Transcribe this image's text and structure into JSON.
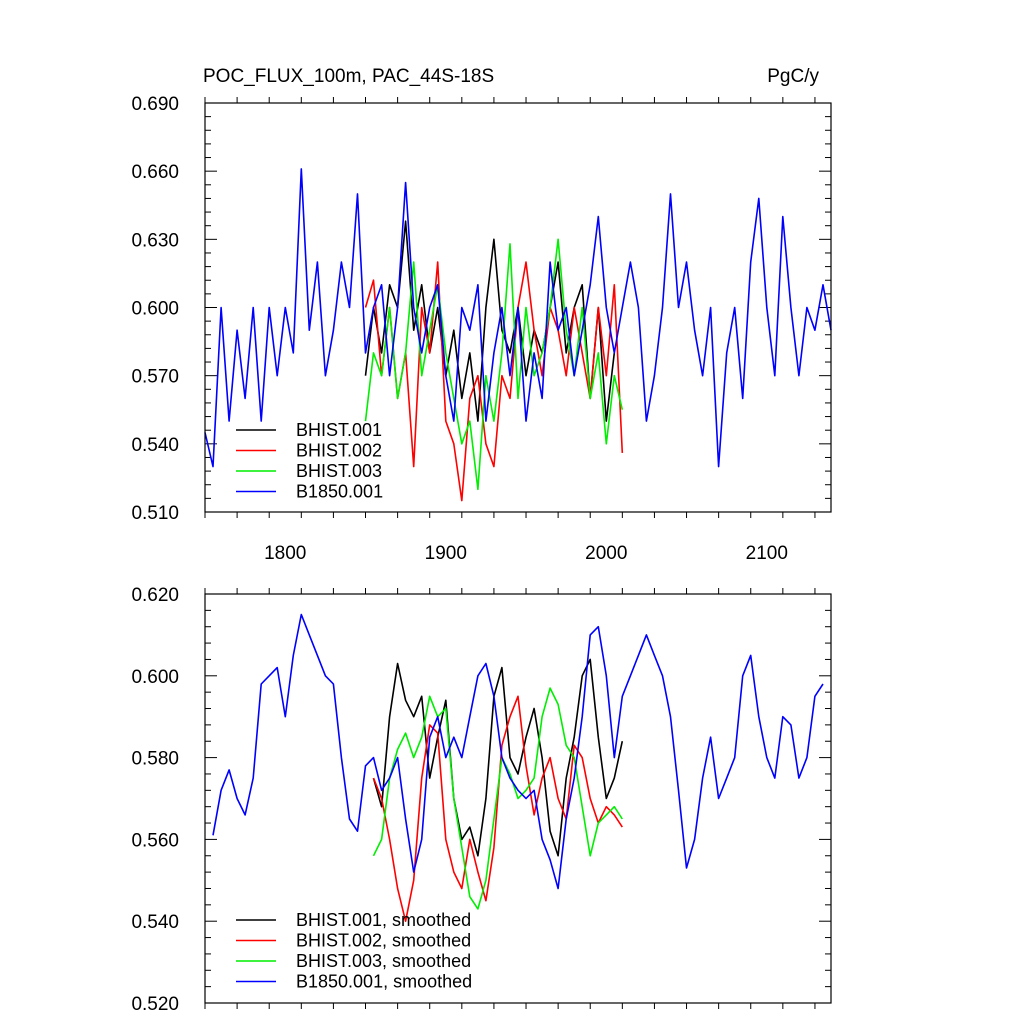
{
  "chart_data": [
    {
      "type": "line",
      "title": "POC_FLUX_100m, PAC_44S-18S",
      "units": "PgC/y",
      "xlim": [
        1750,
        2140
      ],
      "ylim": [
        0.51,
        0.69
      ],
      "xticks": [
        1800,
        1900,
        2000,
        2100
      ],
      "xtick_labels": [
        "1800",
        "1900",
        "2000",
        "2100"
      ],
      "yticks": [
        0.51,
        0.54,
        0.57,
        0.6,
        0.63,
        0.66,
        0.69
      ],
      "ytick_labels": [
        "0.510",
        "0.540",
        "0.570",
        "0.600",
        "0.630",
        "0.660",
        "0.690"
      ],
      "legend_position": "bottom-left",
      "series": [
        {
          "name": "BHIST.001",
          "color": "#000000",
          "x": [
            1850,
            1855,
            1860,
            1865,
            1870,
            1875,
            1880,
            1885,
            1890,
            1895,
            1900,
            1905,
            1910,
            1915,
            1920,
            1925,
            1930,
            1935,
            1940,
            1945,
            1950,
            1955,
            1960,
            1965,
            1970,
            1975,
            1980,
            1985,
            1990,
            1995,
            2000,
            2005
          ],
          "y": [
            0.57,
            0.6,
            0.58,
            0.61,
            0.6,
            0.638,
            0.59,
            0.61,
            0.58,
            0.6,
            0.57,
            0.59,
            0.56,
            0.58,
            0.55,
            0.6,
            0.63,
            0.59,
            0.58,
            0.6,
            0.57,
            0.59,
            0.58,
            0.6,
            0.62,
            0.58,
            0.6,
            0.61,
            0.56,
            0.6,
            0.55,
            0.58
          ]
        },
        {
          "name": "BHIST.002",
          "color": "#ff0000",
          "x": [
            1850,
            1855,
            1860,
            1865,
            1870,
            1875,
            1880,
            1885,
            1890,
            1895,
            1900,
            1905,
            1910,
            1915,
            1920,
            1925,
            1930,
            1935,
            1940,
            1945,
            1950,
            1955,
            1960,
            1965,
            1970,
            1975,
            1980,
            1985,
            1990,
            1995,
            2000,
            2005,
            2010
          ],
          "y": [
            0.6,
            0.612,
            0.57,
            0.6,
            0.56,
            0.58,
            0.53,
            0.6,
            0.58,
            0.62,
            0.55,
            0.54,
            0.515,
            0.56,
            0.57,
            0.54,
            0.53,
            0.57,
            0.56,
            0.6,
            0.62,
            0.59,
            0.57,
            0.6,
            0.59,
            0.57,
            0.6,
            0.58,
            0.56,
            0.6,
            0.57,
            0.61,
            0.536
          ]
        },
        {
          "name": "BHIST.003",
          "color": "#00ee00",
          "x": [
            1850,
            1855,
            1860,
            1865,
            1870,
            1875,
            1880,
            1885,
            1890,
            1895,
            1900,
            1905,
            1910,
            1915,
            1920,
            1925,
            1930,
            1935,
            1940,
            1945,
            1950,
            1955,
            1960,
            1965,
            1970,
            1975,
            1980,
            1985,
            1990,
            1995,
            2000,
            2005,
            2010
          ],
          "y": [
            0.55,
            0.58,
            0.57,
            0.6,
            0.56,
            0.58,
            0.62,
            0.57,
            0.59,
            0.61,
            0.58,
            0.56,
            0.54,
            0.55,
            0.52,
            0.57,
            0.55,
            0.58,
            0.628,
            0.56,
            0.6,
            0.57,
            0.58,
            0.6,
            0.63,
            0.59,
            0.57,
            0.6,
            0.56,
            0.58,
            0.54,
            0.57,
            0.555
          ]
        },
        {
          "name": "B1850.001",
          "color": "#0000ff",
          "x": [
            1750,
            1755,
            1760,
            1765,
            1770,
            1775,
            1780,
            1785,
            1790,
            1795,
            1800,
            1805,
            1810,
            1815,
            1820,
            1825,
            1830,
            1835,
            1840,
            1845,
            1850,
            1855,
            1860,
            1865,
            1870,
            1875,
            1880,
            1885,
            1890,
            1895,
            1900,
            1905,
            1910,
            1915,
            1920,
            1925,
            1930,
            1935,
            1940,
            1945,
            1950,
            1955,
            1960,
            1965,
            1970,
            1975,
            1980,
            1985,
            1990,
            1995,
            2000,
            2005,
            2010,
            2015,
            2020,
            2025,
            2030,
            2035,
            2040,
            2045,
            2050,
            2055,
            2060,
            2065,
            2070,
            2075,
            2080,
            2085,
            2090,
            2095,
            2100,
            2105,
            2110,
            2115,
            2120,
            2125,
            2130,
            2135,
            2140
          ],
          "y": [
            0.545,
            0.53,
            0.6,
            0.55,
            0.59,
            0.56,
            0.6,
            0.55,
            0.6,
            0.57,
            0.6,
            0.58,
            0.661,
            0.59,
            0.62,
            0.57,
            0.59,
            0.62,
            0.6,
            0.65,
            0.58,
            0.6,
            0.61,
            0.57,
            0.6,
            0.655,
            0.6,
            0.58,
            0.6,
            0.61,
            0.57,
            0.55,
            0.6,
            0.59,
            0.61,
            0.55,
            0.58,
            0.6,
            0.57,
            0.6,
            0.55,
            0.58,
            0.56,
            0.62,
            0.59,
            0.6,
            0.57,
            0.59,
            0.61,
            0.64,
            0.6,
            0.58,
            0.6,
            0.62,
            0.6,
            0.55,
            0.57,
            0.6,
            0.65,
            0.6,
            0.62,
            0.59,
            0.57,
            0.6,
            0.53,
            0.58,
            0.6,
            0.56,
            0.62,
            0.648,
            0.6,
            0.57,
            0.64,
            0.6,
            0.57,
            0.6,
            0.59,
            0.61,
            0.59
          ]
        }
      ]
    },
    {
      "type": "line",
      "xlim": [
        1750,
        2140
      ],
      "ylim": [
        0.52,
        0.62
      ],
      "xticks": [
        1800,
        1900,
        2000,
        2100
      ],
      "yticks": [
        0.52,
        0.54,
        0.56,
        0.58,
        0.6,
        0.62
      ],
      "ytick_labels": [
        "0.520",
        "0.540",
        "0.560",
        "0.580",
        "0.600",
        "0.620"
      ],
      "legend_position": "bottom-left",
      "series": [
        {
          "name": "BHIST.001, smoothed",
          "color": "#000000",
          "x": [
            1855,
            1860,
            1865,
            1870,
            1875,
            1880,
            1885,
            1890,
            1895,
            1900,
            1905,
            1910,
            1915,
            1920,
            1925,
            1930,
            1935,
            1940,
            1945,
            1950,
            1955,
            1960,
            1965,
            1970,
            1975,
            1980,
            1985,
            1990,
            1995,
            2000,
            2005,
            2010
          ],
          "y": [
            0.575,
            0.568,
            0.59,
            0.603,
            0.594,
            0.59,
            0.595,
            0.575,
            0.585,
            0.594,
            0.57,
            0.56,
            0.563,
            0.556,
            0.57,
            0.595,
            0.602,
            0.58,
            0.576,
            0.585,
            0.592,
            0.58,
            0.562,
            0.556,
            0.575,
            0.585,
            0.6,
            0.604,
            0.585,
            0.57,
            0.575,
            0.584
          ]
        },
        {
          "name": "BHIST.002, smoothed",
          "color": "#ff0000",
          "x": [
            1855,
            1860,
            1865,
            1870,
            1875,
            1880,
            1885,
            1890,
            1895,
            1900,
            1905,
            1910,
            1915,
            1920,
            1925,
            1930,
            1935,
            1940,
            1945,
            1950,
            1955,
            1960,
            1965,
            1970,
            1975,
            1980,
            1985,
            1990,
            1995,
            2000,
            2005,
            2010
          ],
          "y": [
            0.575,
            0.57,
            0.56,
            0.548,
            0.54,
            0.55,
            0.575,
            0.588,
            0.586,
            0.56,
            0.552,
            0.548,
            0.56,
            0.552,
            0.545,
            0.558,
            0.583,
            0.59,
            0.595,
            0.578,
            0.566,
            0.575,
            0.58,
            0.57,
            0.565,
            0.583,
            0.58,
            0.57,
            0.564,
            0.568,
            0.566,
            0.563
          ]
        },
        {
          "name": "BHIST.003, smoothed",
          "color": "#00ee00",
          "x": [
            1855,
            1860,
            1865,
            1870,
            1875,
            1880,
            1885,
            1890,
            1895,
            1900,
            1905,
            1910,
            1915,
            1920,
            1925,
            1930,
            1935,
            1940,
            1945,
            1950,
            1955,
            1960,
            1965,
            1970,
            1975,
            1980,
            1985,
            1990,
            1995,
            2000,
            2005,
            2010
          ],
          "y": [
            0.556,
            0.56,
            0.575,
            0.582,
            0.586,
            0.58,
            0.585,
            0.595,
            0.59,
            0.592,
            0.57,
            0.558,
            0.546,
            0.543,
            0.55,
            0.565,
            0.58,
            0.576,
            0.57,
            0.572,
            0.575,
            0.59,
            0.597,
            0.593,
            0.583,
            0.58,
            0.568,
            0.556,
            0.564,
            0.566,
            0.568,
            0.565
          ]
        },
        {
          "name": "B1850.001, smoothed",
          "color": "#0000ff",
          "x": [
            1755,
            1760,
            1765,
            1770,
            1775,
            1780,
            1785,
            1790,
            1795,
            1800,
            1805,
            1810,
            1815,
            1820,
            1825,
            1830,
            1835,
            1840,
            1845,
            1850,
            1855,
            1860,
            1865,
            1870,
            1875,
            1880,
            1885,
            1890,
            1895,
            1900,
            1905,
            1910,
            1915,
            1920,
            1925,
            1930,
            1935,
            1940,
            1945,
            1950,
            1955,
            1960,
            1965,
            1970,
            1975,
            1980,
            1985,
            1990,
            1995,
            2000,
            2005,
            2010,
            2015,
            2020,
            2025,
            2030,
            2035,
            2040,
            2045,
            2050,
            2055,
            2060,
            2065,
            2070,
            2075,
            2080,
            2085,
            2090,
            2095,
            2100,
            2105,
            2110,
            2115,
            2120,
            2125,
            2130,
            2135
          ],
          "y": [
            0.561,
            0.572,
            0.577,
            0.57,
            0.566,
            0.575,
            0.598,
            0.6,
            0.602,
            0.59,
            0.605,
            0.615,
            0.61,
            0.605,
            0.6,
            0.598,
            0.58,
            0.565,
            0.562,
            0.578,
            0.58,
            0.572,
            0.575,
            0.58,
            0.565,
            0.552,
            0.56,
            0.585,
            0.59,
            0.58,
            0.585,
            0.58,
            0.59,
            0.6,
            0.603,
            0.595,
            0.58,
            0.575,
            0.572,
            0.57,
            0.572,
            0.56,
            0.555,
            0.548,
            0.565,
            0.575,
            0.59,
            0.61,
            0.612,
            0.6,
            0.58,
            0.595,
            0.6,
            0.605,
            0.61,
            0.605,
            0.6,
            0.59,
            0.572,
            0.553,
            0.56,
            0.575,
            0.585,
            0.57,
            0.575,
            0.58,
            0.6,
            0.605,
            0.59,
            0.58,
            0.575,
            0.59,
            0.588,
            0.575,
            0.58,
            0.595,
            0.598
          ]
        }
      ]
    }
  ]
}
